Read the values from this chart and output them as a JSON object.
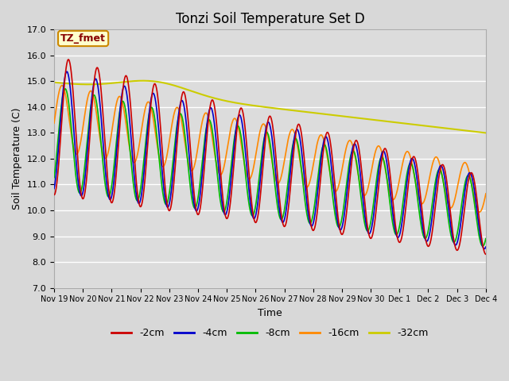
{
  "title": "Tonzi Soil Temperature Set D",
  "xlabel": "Time",
  "ylabel": "Soil Temperature (C)",
  "ylim": [
    7.0,
    17.0
  ],
  "yticks": [
    7.0,
    8.0,
    9.0,
    10.0,
    11.0,
    12.0,
    13.0,
    14.0,
    15.0,
    16.0,
    17.0
  ],
  "xtick_labels": [
    "Nov 19",
    "Nov 20",
    "Nov 21",
    "Nov 22",
    "Nov 23",
    "Nov 24",
    "Nov 25",
    "Nov 26",
    "Nov 27",
    "Nov 28",
    "Nov 29",
    "Nov 30",
    "Dec 1",
    "Dec 2",
    "Dec 3",
    "Dec 4"
  ],
  "legend_labels": [
    "-2cm",
    "-4cm",
    "-8cm",
    "-16cm",
    "-32cm"
  ],
  "line_colors": [
    "#cc0000",
    "#0000cc",
    "#00bb00",
    "#ff8800",
    "#cccc00"
  ],
  "annotation_text": "TZ_fmet",
  "annotation_bg": "#ffffcc",
  "annotation_border": "#cc8800",
  "annotation_text_color": "#880000",
  "fig_bg_color": "#d8d8d8",
  "ax_bg_color": "#dcdcdc",
  "grid_color": "#ffffff",
  "title_fontsize": 12,
  "label_fontsize": 9,
  "tick_fontsize": 8
}
